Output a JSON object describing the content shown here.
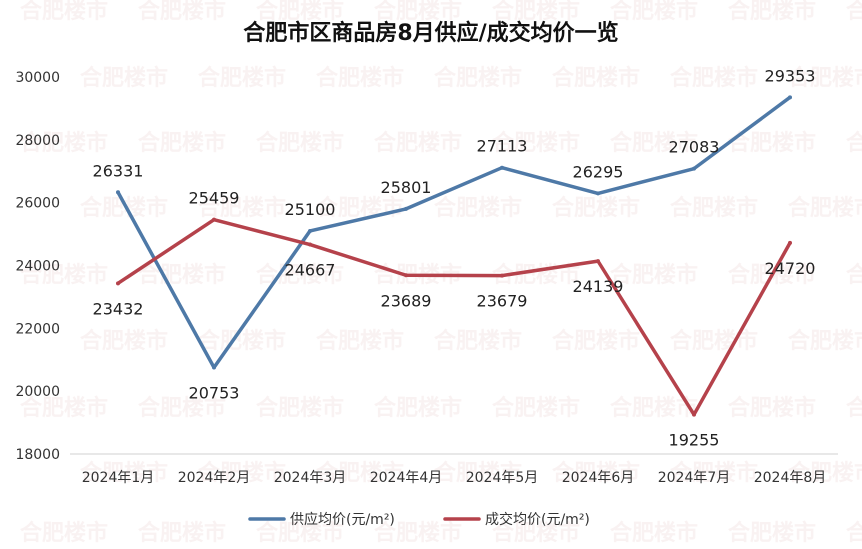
{
  "chart_data": {
    "type": "line",
    "title": "合肥市区商品房8月供应/成交均价一览",
    "categories": [
      "2024年1月",
      "2024年2月",
      "2024年3月",
      "2024年4月",
      "2024年5月",
      "2024年6月",
      "2024年7月",
      "2024年8月"
    ],
    "series": [
      {
        "name": "供应均价(元/m²)",
        "color": "#4e79a7",
        "values": [
          26331,
          20753,
          25100,
          25801,
          27113,
          26295,
          27083,
          29353
        ],
        "label_position": [
          "above",
          "below",
          "above",
          "above",
          "above",
          "above",
          "above",
          "above"
        ]
      },
      {
        "name": "成交均价(元/m²)",
        "color": "#b5424b",
        "values": [
          23432,
          25459,
          24667,
          23689,
          23679,
          24139,
          19255,
          24720
        ],
        "label_position": [
          "below",
          "above",
          "below",
          "below",
          "below",
          "below",
          "below",
          "below"
        ]
      }
    ],
    "y_ticks": [
      18000,
      20000,
      22000,
      24000,
      26000,
      28000,
      30000
    ],
    "ylim": [
      18000,
      30000
    ],
    "grid": false,
    "legend_position": "bottom",
    "watermark_text": "合肥楼市"
  }
}
